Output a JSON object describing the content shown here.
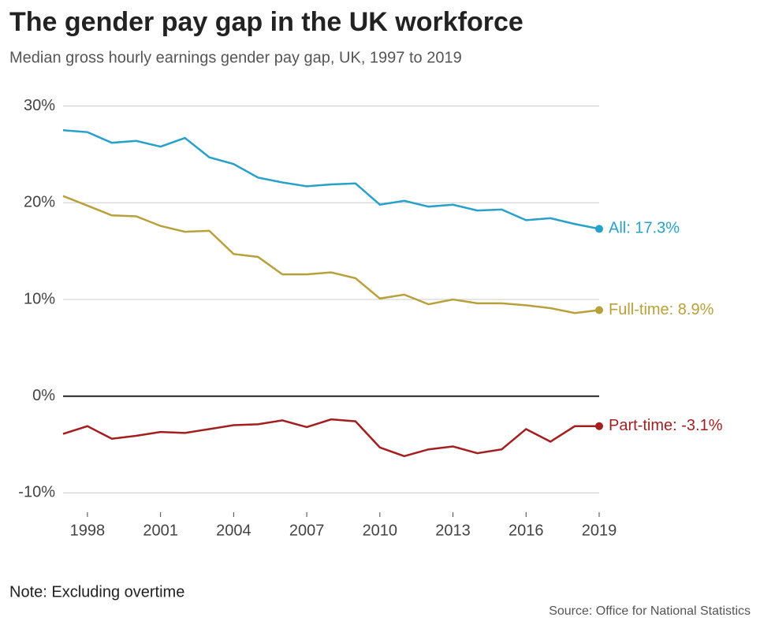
{
  "chart_data": {
    "type": "line",
    "title": "The gender pay gap in the UK workforce",
    "subtitle": "Median gross hourly earnings gender pay gap, UK, 1997 to 2019",
    "note": "Note: Excluding overtime",
    "source": "Source: Office for National Statistics",
    "x": [
      1997,
      1998,
      1999,
      2000,
      2001,
      2002,
      2003,
      2004,
      2005,
      2006,
      2007,
      2008,
      2009,
      2010,
      2011,
      2012,
      2013,
      2014,
      2015,
      2016,
      2017,
      2018,
      2019
    ],
    "series": [
      {
        "name": "All",
        "color": "#27a0cc",
        "values": [
          27.5,
          27.3,
          26.2,
          26.4,
          25.8,
          26.7,
          24.7,
          24.0,
          22.6,
          22.1,
          21.7,
          21.9,
          22.0,
          19.8,
          20.2,
          19.6,
          19.8,
          19.2,
          19.3,
          18.2,
          18.4,
          17.8,
          17.3
        ],
        "value_labels": [
          null,
          null,
          null,
          null,
          null,
          null,
          null,
          null,
          null,
          null,
          null,
          null,
          null,
          null,
          null,
          null,
          null,
          null,
          null,
          null,
          null,
          null,
          "All: 17.3%"
        ]
      },
      {
        "name": "Full-time",
        "color": "#b8a03a",
        "values": [
          20.7,
          19.7,
          18.7,
          18.6,
          17.6,
          17.0,
          17.1,
          14.7,
          14.4,
          12.6,
          12.6,
          12.8,
          12.2,
          10.1,
          10.5,
          9.5,
          10.0,
          9.6,
          9.6,
          9.4,
          9.1,
          8.6,
          8.9
        ],
        "value_labels": [
          null,
          null,
          null,
          null,
          null,
          null,
          null,
          null,
          null,
          null,
          null,
          null,
          null,
          null,
          null,
          null,
          null,
          null,
          null,
          null,
          null,
          null,
          "Full-time: 8.9%"
        ]
      },
      {
        "name": "Part-time",
        "color": "#a31f1f",
        "values": [
          -3.9,
          -3.1,
          -4.4,
          -4.1,
          -3.7,
          -3.8,
          -3.4,
          -3.0,
          -2.9,
          -2.5,
          -3.2,
          -2.4,
          -2.6,
          -5.3,
          -6.2,
          -5.5,
          -5.2,
          -5.9,
          -5.5,
          -3.4,
          -4.7,
          -3.1,
          -3.1
        ],
        "value_labels": [
          null,
          null,
          null,
          null,
          null,
          null,
          null,
          null,
          null,
          null,
          null,
          null,
          null,
          null,
          null,
          null,
          null,
          null,
          null,
          null,
          null,
          null,
          "Part-time: -3.1%"
        ]
      }
    ],
    "xlim": [
      1997,
      2019
    ],
    "xticks": [
      1998,
      2001,
      2004,
      2007,
      2010,
      2013,
      2016,
      2019
    ],
    "ylim": [
      -12,
      32
    ],
    "yticks": [
      {
        "value": -10,
        "label": "-10%"
      },
      {
        "value": 0,
        "label": "0%"
      },
      {
        "value": 10,
        "label": "10%"
      },
      {
        "value": 20,
        "label": "20%"
      },
      {
        "value": 30,
        "label": "30%"
      }
    ],
    "grid": true
  }
}
